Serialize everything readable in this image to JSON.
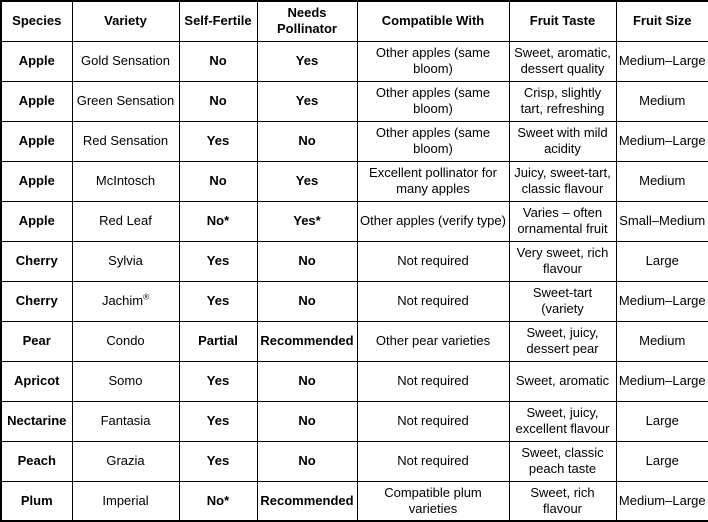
{
  "table": {
    "columns": [
      {
        "key": "species",
        "label": "Species"
      },
      {
        "key": "variety",
        "label": "Variety"
      },
      {
        "key": "self_fertile",
        "label": "Self-Fertile"
      },
      {
        "key": "needs_pollinator",
        "label": "Needs Pollinator"
      },
      {
        "key": "compatible_with",
        "label": "Compatible With"
      },
      {
        "key": "fruit_taste",
        "label": "Fruit Taste"
      },
      {
        "key": "fruit_size",
        "label": "Fruit Size"
      }
    ],
    "rows": [
      [
        "Apple",
        "Gold Sensation",
        "No",
        "Yes",
        "Other apples (same bloom)",
        "Sweet, aromatic, dessert quality",
        "Medium–Large"
      ],
      [
        "Apple",
        "Green Sensation",
        "No",
        "Yes",
        "Other apples (same bloom)",
        "Crisp, slightly tart, refreshing",
        "Medium"
      ],
      [
        "Apple",
        "Red Sensation",
        "Yes",
        "No",
        "Other apples (same bloom)",
        "Sweet with mild acidity",
        "Medium–Large"
      ],
      [
        "Apple",
        "McIntosch",
        "No",
        "Yes",
        "Excellent pollinator for many apples",
        "Juicy, sweet-tart, classic flavour",
        "Medium"
      ],
      [
        "Apple",
        "Red Leaf",
        "No*",
        "Yes*",
        "Other apples (verify type)",
        "Varies – often ornamental fruit",
        "Small–Medium"
      ],
      [
        "Cherry",
        "Sylvia",
        "Yes",
        "No",
        "Not required",
        "Very sweet, rich flavour",
        "Large"
      ],
      [
        "Cherry",
        "Jachim®",
        "Yes",
        "No",
        "Not required",
        "Sweet-tart (variety",
        "Medium–Large"
      ],
      [
        "Pear",
        "Condo",
        "Partial",
        "Recommended",
        "Other pear varieties",
        "Sweet, juicy, dessert pear",
        "Medium"
      ],
      [
        "Apricot",
        "Somo",
        "Yes",
        "No",
        "Not required",
        "Sweet, aromatic",
        "Medium–Large"
      ],
      [
        "Nectarine",
        "Fantasia",
        "Yes",
        "No",
        "Not required",
        "Sweet, juicy, excellent flavour",
        "Large"
      ],
      [
        "Peach",
        "Grazia",
        "Yes",
        "No",
        "Not required",
        "Sweet, classic peach taste",
        "Large"
      ],
      [
        "Plum",
        "Imperial",
        "No*",
        "Recommended",
        "Compatible plum varieties",
        "Sweet, rich flavour",
        "Medium–Large"
      ]
    ]
  },
  "colors": {
    "border": "#000000",
    "text": "#000000",
    "background": "#ffffff"
  }
}
